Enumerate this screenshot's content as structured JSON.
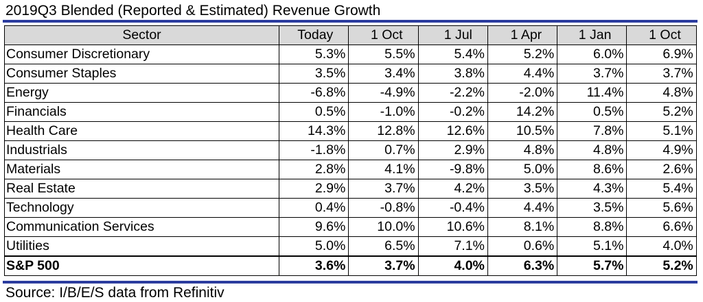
{
  "title": "2019Q3 Blended (Reported & Estimated) Revenue Growth",
  "table": {
    "headers": [
      "Sector",
      "Today",
      "1 Oct",
      "1 Jul",
      "1 Apr",
      "1 Jan",
      "1 Oct"
    ],
    "rows": [
      {
        "sector": "Consumer Discretionary",
        "values": [
          "5.3%",
          "5.5%",
          "5.4%",
          "5.2%",
          "6.0%",
          "6.9%"
        ]
      },
      {
        "sector": "Consumer Staples",
        "values": [
          "3.5%",
          "3.4%",
          "3.8%",
          "4.4%",
          "3.7%",
          "3.7%"
        ]
      },
      {
        "sector": "Energy",
        "values": [
          "-6.8%",
          "-4.9%",
          "-2.2%",
          "-2.0%",
          "11.4%",
          "4.8%"
        ]
      },
      {
        "sector": "Financials",
        "values": [
          "0.5%",
          "-1.0%",
          "-0.2%",
          "14.2%",
          "0.5%",
          "5.2%"
        ]
      },
      {
        "sector": "Health Care",
        "values": [
          "14.3%",
          "12.8%",
          "12.6%",
          "10.5%",
          "7.8%",
          "5.1%"
        ]
      },
      {
        "sector": "Industrials",
        "values": [
          "-1.8%",
          "0.7%",
          "2.9%",
          "4.8%",
          "4.8%",
          "4.9%"
        ]
      },
      {
        "sector": "Materials",
        "values": [
          "2.8%",
          "4.1%",
          "-9.8%",
          "5.0%",
          "8.6%",
          "2.6%"
        ]
      },
      {
        "sector": "Real Estate",
        "values": [
          "2.9%",
          "3.7%",
          "4.2%",
          "3.5%",
          "4.3%",
          "5.4%"
        ]
      },
      {
        "sector": "Technology",
        "values": [
          "0.4%",
          "-0.8%",
          "-0.4%",
          "4.4%",
          "3.5%",
          "5.6%"
        ]
      },
      {
        "sector": "Communication Services",
        "values": [
          "9.6%",
          "10.0%",
          "10.6%",
          "8.1%",
          "8.8%",
          "6.6%"
        ]
      },
      {
        "sector": "Utilities",
        "values": [
          "5.0%",
          "6.5%",
          "7.1%",
          "0.6%",
          "5.1%",
          "4.0%"
        ]
      }
    ],
    "total": {
      "sector": "S&P 500",
      "values": [
        "3.6%",
        "3.7%",
        "4.0%",
        "6.3%",
        "5.7%",
        "5.2%"
      ]
    }
  },
  "source": "Source: I/B/E/S data from Refinitiv",
  "colors": {
    "rule": "#2b3c9e",
    "header_bg": "#d9d9d9"
  }
}
